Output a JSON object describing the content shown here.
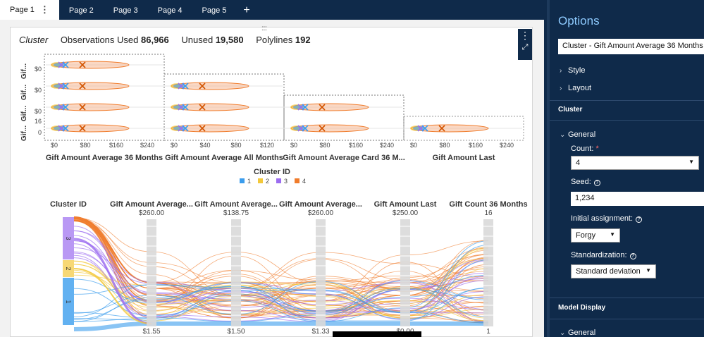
{
  "tabs": [
    {
      "label": "Page 1"
    },
    {
      "label": "Page 2"
    },
    {
      "label": "Page 3"
    },
    {
      "label": "Page 4"
    },
    {
      "label": "Page 5"
    }
  ],
  "tab_more": "⋮",
  "tab_add": "+",
  "header": {
    "title": "Cluster",
    "obs_label": "Observations Used",
    "obs_value": "86,966",
    "unused_label": "Unused",
    "unused_value": "19,580",
    "poly_label": "Polylines",
    "poly_value": "192"
  },
  "matrix": {
    "row_labels": [
      "Gif...",
      "Gif...",
      "Gif...",
      "Gif..."
    ],
    "y_ticks_row1": [
      "$0"
    ],
    "y_ticks_row2": [
      "$0"
    ],
    "y_ticks_row3": [
      "$0"
    ],
    "y_ticks_row4": [
      "16",
      "0"
    ],
    "columns": [
      {
        "label": "Gift Amount Average 36 Months",
        "ticks": [
          "$0",
          "$80",
          "$160",
          "$240"
        ]
      },
      {
        "label": "Gift Amount Average All Months",
        "ticks": [
          "$0",
          "$40",
          "$80",
          "$120"
        ]
      },
      {
        "label": "Gift Amount Average Card 36 M...",
        "ticks": [
          "$0",
          "$80",
          "$160",
          "$240"
        ]
      },
      {
        "label": "Gift Amount Last",
        "ticks": [
          "$0",
          "$80",
          "$160",
          "$240"
        ]
      }
    ]
  },
  "legend": {
    "title": "Cluster ID",
    "items": [
      {
        "label": "1",
        "color": "#3b9ded"
      },
      {
        "label": "2",
        "color": "#f3c83a"
      },
      {
        "label": "3",
        "color": "#9b6cf0"
      },
      {
        "label": "4",
        "color": "#f07c2c"
      }
    ]
  },
  "parallel": {
    "axes": [
      {
        "label": "Cluster ID",
        "top": "",
        "bottom": ""
      },
      {
        "label": "Gift Amount Average...",
        "top": "$260.00",
        "bottom": "$1.55"
      },
      {
        "label": "Gift Amount Average...",
        "top": "$138.75",
        "bottom": "$1.50"
      },
      {
        "label": "Gift Amount Average...",
        "top": "$260.00",
        "bottom": "$1.33"
      },
      {
        "label": "Gift Amount Last",
        "top": "$250.00",
        "bottom": "$0.00"
      },
      {
        "label": "Gift Count 36 Months",
        "top": "16",
        "bottom": "1"
      }
    ],
    "cluster_bands": [
      "3",
      "2",
      "1"
    ]
  },
  "chart_data": {
    "type": "scatter",
    "title": "",
    "legend_title": "Cluster ID",
    "series": [
      {
        "name": "1",
        "color": "#3b9ded"
      },
      {
        "name": "2",
        "color": "#f3c83a"
      },
      {
        "name": "3",
        "color": "#9b6cf0"
      },
      {
        "name": "4",
        "color": "#f07c2c"
      }
    ],
    "parallel_axes": [
      {
        "label": "Cluster ID"
      },
      {
        "label": "Gift Amount Average...",
        "range": [
          "$1.55",
          "$260.00"
        ]
      },
      {
        "label": "Gift Amount Average...",
        "range": [
          "$1.50",
          "$138.75"
        ]
      },
      {
        "label": "Gift Amount Average...",
        "range": [
          "$1.33",
          "$260.00"
        ]
      },
      {
        "label": "Gift Amount Last",
        "range": [
          "$0.00",
          "$250.00"
        ]
      },
      {
        "label": "Gift Count 36 Months",
        "range": [
          "1",
          "16"
        ]
      }
    ]
  },
  "panel": {
    "title": "Options",
    "object_select": "Cluster - Gift Amount Average 36 Months",
    "style_label": "Style",
    "layout_label": "Layout",
    "cluster_section": "Cluster",
    "general_label": "General",
    "count_label": "Count:",
    "count_required": "*",
    "count_value": "4",
    "seed_label": "Seed:",
    "seed_value": "1,234",
    "initial_label": "Initial assignment:",
    "initial_value": "Forgy",
    "std_label": "Standardization:",
    "std_value": "Standard deviation",
    "model_display_section": "Model Display",
    "general2_label": "General"
  }
}
